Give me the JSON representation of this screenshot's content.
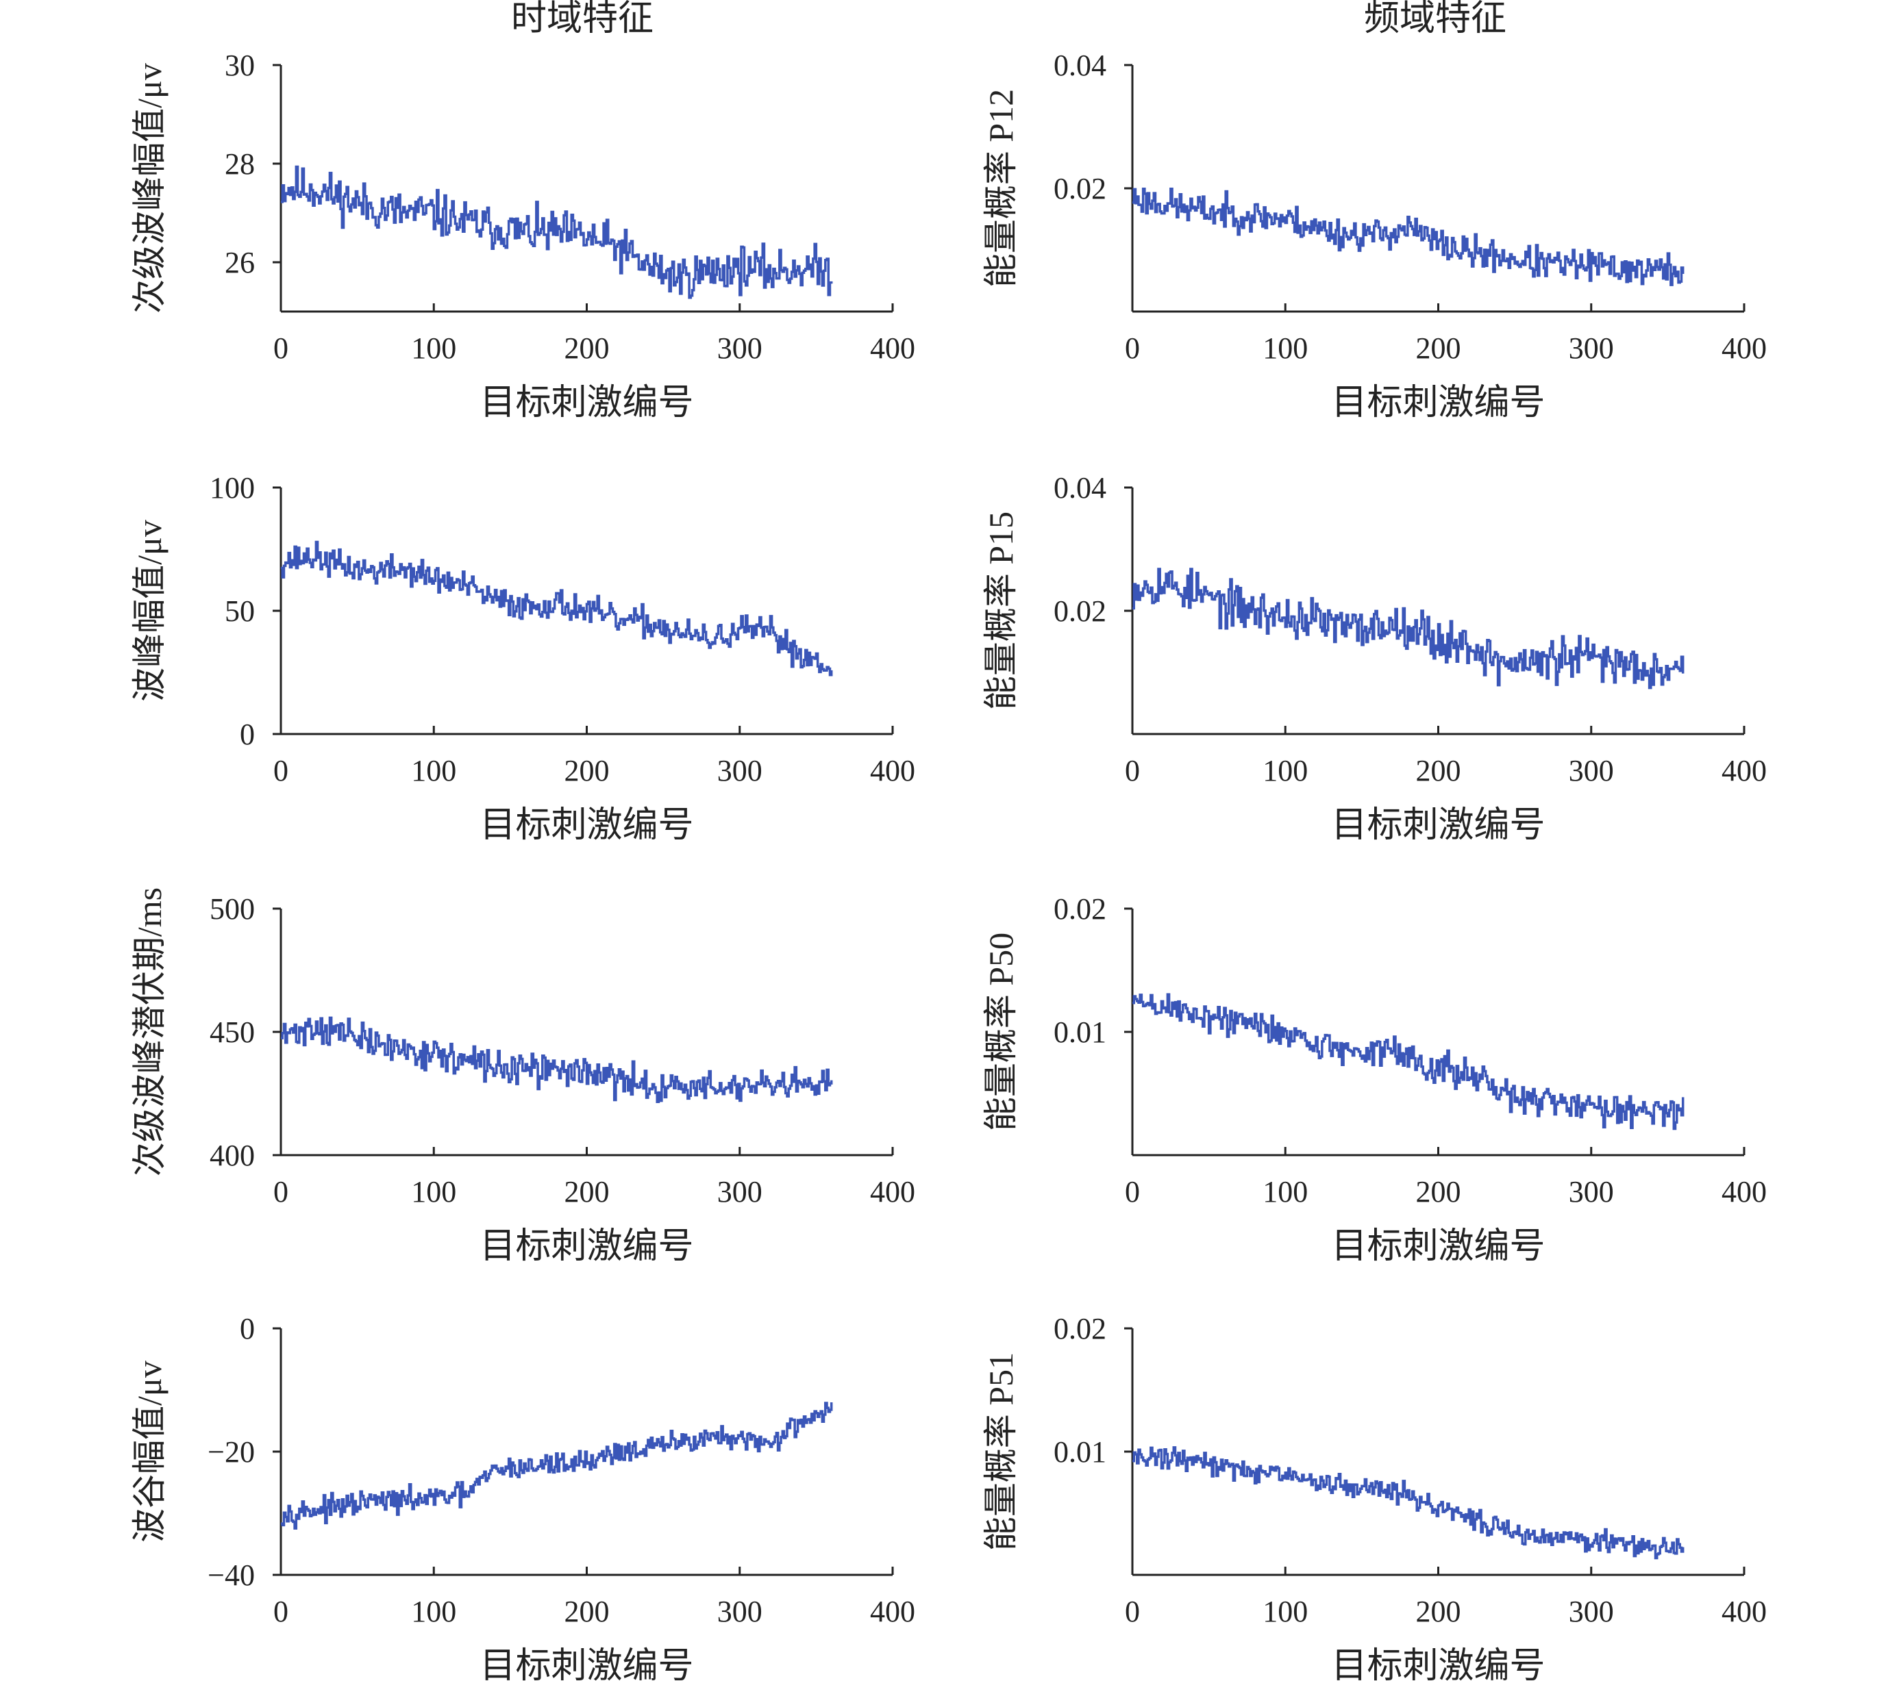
{
  "columns": [
    "时域特征",
    "频域特征"
  ],
  "series_color": "#3a56b8",
  "chart_data": [
    {
      "type": "line",
      "title": "",
      "xlabel": "目标刺激编号",
      "ylabel": "次级波峰幅值/μv",
      "xlim": [
        0,
        400
      ],
      "xticks": [
        0,
        100,
        200,
        300,
        400
      ],
      "ylim": [
        25,
        30
      ],
      "yticks": [
        26,
        28,
        30
      ],
      "ytick_labels": [
        "26",
        "28",
        "30"
      ],
      "x": [
        0,
        20,
        40,
        60,
        80,
        100,
        120,
        140,
        160,
        180,
        200,
        220,
        240,
        260,
        280,
        300,
        320,
        340,
        360
      ],
      "y": [
        27.5,
        27.5,
        27.3,
        27.1,
        27.0,
        27.0,
        26.8,
        26.7,
        26.6,
        26.6,
        26.5,
        26.3,
        25.9,
        25.7,
        25.8,
        25.9,
        25.8,
        25.9,
        25.8
      ],
      "amp": 0.38,
      "seed": 11
    },
    {
      "type": "line",
      "title": "",
      "xlabel": "目标刺激编号",
      "ylabel": "能量概率 P12",
      "xlim": [
        0,
        400
      ],
      "xticks": [
        0,
        100,
        200,
        300,
        400
      ],
      "ylim": [
        0,
        0.04
      ],
      "yticks": [
        0.02,
        0.04
      ],
      "ytick_labels": [
        "0.02",
        "0.04"
      ],
      "x": [
        0,
        20,
        40,
        60,
        80,
        100,
        120,
        140,
        160,
        180,
        200,
        220,
        240,
        260,
        280,
        300,
        320,
        340,
        360
      ],
      "y": [
        0.0185,
        0.0175,
        0.0165,
        0.016,
        0.0155,
        0.015,
        0.0135,
        0.0125,
        0.0125,
        0.0135,
        0.011,
        0.0095,
        0.009,
        0.008,
        0.0075,
        0.0075,
        0.007,
        0.0068,
        0.0065
      ],
      "amp": 0.0022,
      "seed": 23
    },
    {
      "type": "line",
      "title": "",
      "xlabel": "目标刺激编号",
      "ylabel": "波峰幅值/μv",
      "xlim": [
        0,
        400
      ],
      "xticks": [
        0,
        100,
        200,
        300,
        400
      ],
      "ylim": [
        0,
        100
      ],
      "yticks": [
        0,
        50,
        100
      ],
      "ytick_labels": [
        "0",
        "50",
        "100"
      ],
      "x": [
        0,
        20,
        40,
        60,
        80,
        100,
        120,
        140,
        160,
        180,
        200,
        220,
        240,
        260,
        280,
        300,
        320,
        340,
        360
      ],
      "y": [
        70,
        72,
        68,
        66,
        67,
        63,
        60,
        54,
        52,
        53,
        50,
        46,
        45,
        41,
        38,
        42,
        41,
        32,
        28
      ],
      "amp": 5.0,
      "seed": 37
    },
    {
      "type": "line",
      "title": "",
      "xlabel": "目标刺激编号",
      "ylabel": "能量概率 P15",
      "xlim": [
        0,
        400
      ],
      "xticks": [
        0,
        100,
        200,
        300,
        400
      ],
      "ylim": [
        0,
        0.04
      ],
      "yticks": [
        0.02,
        0.04
      ],
      "ytick_labels": [
        "0.02",
        "0.04"
      ],
      "x": [
        0,
        20,
        40,
        60,
        80,
        100,
        120,
        140,
        160,
        180,
        200,
        220,
        240,
        260,
        280,
        300,
        320,
        340,
        360
      ],
      "y": [
        0.024,
        0.0245,
        0.023,
        0.021,
        0.02,
        0.019,
        0.0185,
        0.017,
        0.0175,
        0.018,
        0.015,
        0.0145,
        0.0115,
        0.0115,
        0.012,
        0.0125,
        0.0115,
        0.011,
        0.0105
      ],
      "amp": 0.003,
      "seed": 53
    },
    {
      "type": "line",
      "title": "",
      "xlabel": "目标刺激编号",
      "ylabel": "次级波峰潜伏期/ms",
      "xlim": [
        0,
        400
      ],
      "xticks": [
        0,
        100,
        200,
        300,
        400
      ],
      "ylim": [
        400,
        500
      ],
      "yticks": [
        400,
        450,
        500
      ],
      "ytick_labels": [
        "400",
        "450",
        "500"
      ],
      "x": [
        0,
        20,
        40,
        60,
        80,
        100,
        120,
        140,
        160,
        180,
        200,
        220,
        240,
        260,
        280,
        300,
        320,
        340,
        360
      ],
      "y": [
        448,
        452,
        450,
        445,
        443,
        441,
        438,
        436,
        434,
        435,
        434,
        430,
        428,
        428,
        427,
        428,
        427,
        428,
        428
      ],
      "amp": 5.5,
      "seed": 71
    },
    {
      "type": "line",
      "title": "",
      "xlabel": "目标刺激编号",
      "ylabel": "能量概率 P50",
      "xlim": [
        0,
        400
      ],
      "xticks": [
        0,
        100,
        200,
        300,
        400
      ],
      "ylim": [
        0,
        0.02
      ],
      "yticks": [
        0.01,
        0.02
      ],
      "ytick_labels": [
        "0.01",
        "0.02"
      ],
      "x": [
        0,
        20,
        40,
        60,
        80,
        100,
        120,
        140,
        160,
        180,
        200,
        220,
        240,
        260,
        280,
        300,
        320,
        340,
        360
      ],
      "y": [
        0.0125,
        0.012,
        0.0115,
        0.011,
        0.0105,
        0.01,
        0.009,
        0.0085,
        0.0085,
        0.008,
        0.007,
        0.0065,
        0.005,
        0.0045,
        0.0042,
        0.004,
        0.0038,
        0.0037,
        0.0035
      ],
      "amp": 0.0011,
      "seed": 89
    },
    {
      "type": "line",
      "title": "",
      "xlabel": "目标刺激编号",
      "ylabel": "波谷幅值/μv",
      "xlim": [
        0,
        400
      ],
      "xticks": [
        0,
        100,
        200,
        300,
        400
      ],
      "ylim": [
        -40,
        0
      ],
      "yticks": [
        -40,
        -20,
        0
      ],
      "ytick_labels": [
        "−40",
        "−20",
        "0"
      ],
      "x": [
        0,
        20,
        40,
        60,
        80,
        100,
        120,
        140,
        160,
        180,
        200,
        220,
        240,
        260,
        280,
        300,
        320,
        340,
        360
      ],
      "y": [
        -30,
        -29.5,
        -29,
        -28,
        -28,
        -27.5,
        -27,
        -23,
        -22.5,
        -22,
        -21.5,
        -20,
        -19.5,
        -18.5,
        -17.5,
        -18.5,
        -18.5,
        -15,
        -13
      ],
      "amp": 1.6,
      "seed": 97
    },
    {
      "type": "line",
      "title": "",
      "xlabel": "目标刺激编号",
      "ylabel": "能量概率 P51",
      "xlim": [
        0,
        400
      ],
      "xticks": [
        0,
        100,
        200,
        300,
        400
      ],
      "ylim": [
        0,
        0.02
      ],
      "yticks": [
        0.01,
        0.02
      ],
      "ytick_labels": [
        "0.01",
        "0.02"
      ],
      "x": [
        0,
        20,
        40,
        60,
        80,
        100,
        120,
        140,
        160,
        180,
        200,
        220,
        240,
        260,
        280,
        300,
        320,
        340,
        360
      ],
      "y": [
        0.0097,
        0.0095,
        0.0093,
        0.0088,
        0.0084,
        0.008,
        0.0075,
        0.0072,
        0.007,
        0.0066,
        0.0052,
        0.0048,
        0.0038,
        0.0032,
        0.003,
        0.0028,
        0.0025,
        0.0023,
        0.002
      ],
      "amp": 0.00075,
      "seed": 131
    }
  ]
}
